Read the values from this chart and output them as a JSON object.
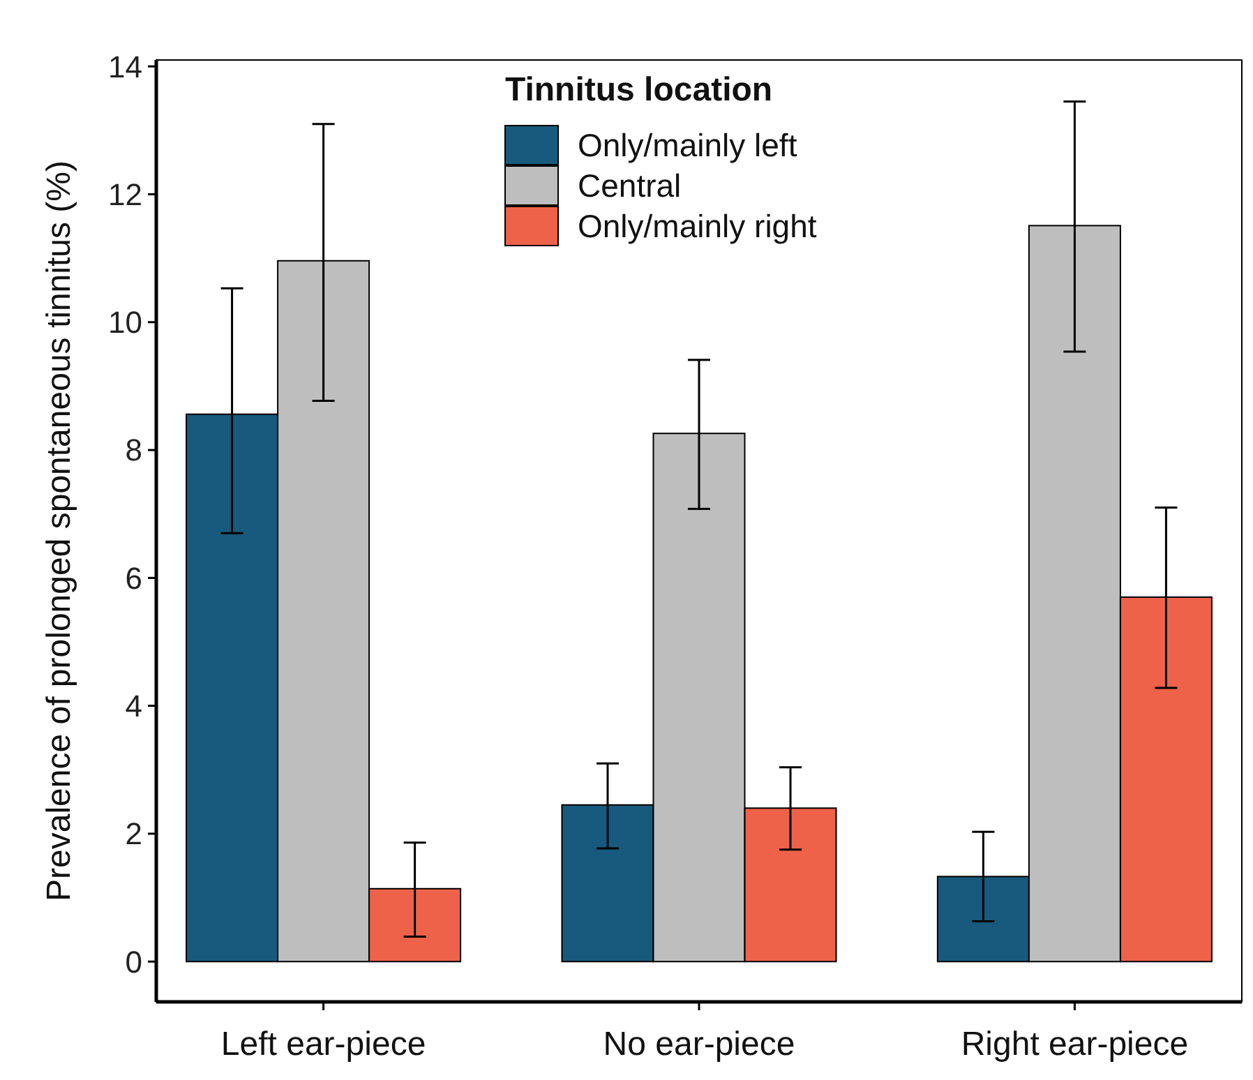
{
  "chart_data": {
    "type": "bar",
    "ylabel": "Prevalence of prolonged spontaneous tinnitus (%)",
    "legend_title": "Tinnitus location",
    "categories": [
      "Left ear-piece",
      "No ear-piece",
      "Right ear-piece"
    ],
    "series": [
      {
        "name": "Only/mainly left",
        "color": "#185a7d",
        "values": [
          8.56,
          2.45,
          1.33
        ],
        "errors": [
          [
            6.7,
            10.53
          ],
          [
            1.77,
            3.1
          ],
          [
            0.63,
            2.03
          ]
        ]
      },
      {
        "name": "Central",
        "color": "#bebebe",
        "values": [
          10.96,
          8.26,
          11.51
        ],
        "errors": [
          [
            8.77,
            13.1
          ],
          [
            7.08,
            9.41
          ],
          [
            9.54,
            13.45
          ]
        ]
      },
      {
        "name": "Only/mainly right",
        "color": "#ee6249",
        "values": [
          1.14,
          2.4,
          5.7
        ],
        "errors": [
          [
            0.39,
            1.86
          ],
          [
            1.75,
            3.04
          ],
          [
            4.28,
            7.1
          ]
        ]
      }
    ],
    "ylim": [
      -0.63,
      14.1
    ],
    "yticks": [
      0,
      2,
      4,
      6,
      8,
      10,
      12,
      14
    ],
    "grid": false,
    "legend": "top"
  }
}
